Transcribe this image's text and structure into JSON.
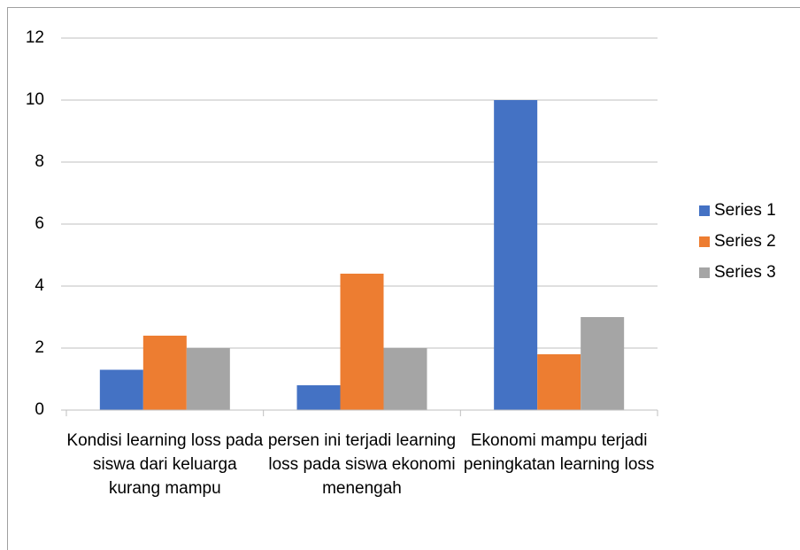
{
  "chart_data": {
    "type": "bar",
    "categories": [
      "Kondisi learning loss pada siswa dari keluarga kurang mampu",
      "persen ini terjadi learning loss pada siswa ekonomi menengah",
      "Ekonomi mampu terjadi peningkatan learning loss"
    ],
    "series": [
      {
        "name": "Series 1",
        "color": "#4472c4",
        "values": [
          1.3,
          0.8,
          10
        ]
      },
      {
        "name": "Series 2",
        "color": "#ed7d31",
        "values": [
          2.4,
          4.4,
          1.8
        ]
      },
      {
        "name": "Series 3",
        "color": "#a5a5a5",
        "values": [
          2,
          2,
          3
        ]
      }
    ],
    "ylim": [
      0,
      12
    ],
    "yticks": [
      0,
      2,
      4,
      6,
      8,
      10,
      12
    ],
    "grid": true,
    "legend": "right"
  }
}
